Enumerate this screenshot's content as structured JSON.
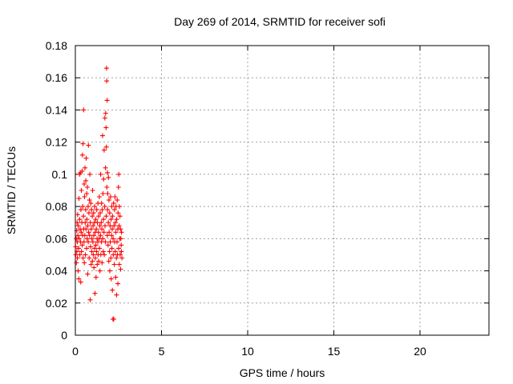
{
  "chart_data": {
    "type": "scatter",
    "title": "Day 269 of 2014, SRMTID for receiver sofi",
    "xlabel": "GPS time / hours",
    "ylabel": "SRMTID / TECUs",
    "xlim": [
      0,
      24
    ],
    "ylim": [
      0,
      0.18
    ],
    "xticks": [
      0,
      5,
      10,
      15,
      20
    ],
    "xtick_labels": [
      "0",
      "5",
      "10",
      "15",
      "20"
    ],
    "yticks": [
      0,
      0.02,
      0.04,
      0.06,
      0.08,
      0.1,
      0.12,
      0.14,
      0.16,
      0.18
    ],
    "ytick_labels": [
      "0",
      "0.02",
      "0.04",
      "0.06",
      "0.08",
      "0.1",
      "0.12",
      "0.14",
      "0.16",
      "0.18"
    ],
    "grid": true,
    "marker": "+",
    "color": "#ff0000",
    "series": [
      {
        "points": [
          [
            0.02,
            0.055
          ],
          [
            0.03,
            0.05
          ],
          [
            0.05,
            0.06
          ],
          [
            0.06,
            0.045
          ],
          [
            0.08,
            0.065
          ],
          [
            0.09,
            0.052
          ],
          [
            0.1,
            0.07
          ],
          [
            0.11,
            0.058
          ],
          [
            0.12,
            0.048
          ],
          [
            0.13,
            0.075
          ],
          [
            0.15,
            0.062
          ],
          [
            0.16,
            0.04
          ],
          [
            0.17,
            0.068
          ],
          [
            0.19,
            0.054
          ],
          [
            0.2,
            0.035
          ],
          [
            0.21,
            0.085
          ],
          [
            0.22,
            0.06
          ],
          [
            0.24,
            0.1
          ],
          [
            0.25,
            0.072
          ],
          [
            0.26,
            0.05
          ],
          [
            0.28,
            0.066
          ],
          [
            0.29,
            0.101
          ],
          [
            0.3,
            0.058
          ],
          [
            0.31,
            0.033
          ],
          [
            0.32,
            0.078
          ],
          [
            0.34,
            0.064
          ],
          [
            0.35,
            0.09
          ],
          [
            0.36,
            0.052
          ],
          [
            0.38,
            0.07
          ],
          [
            0.39,
            0.102
          ],
          [
            0.4,
            0.056
          ],
          [
            0.41,
            0.112
          ],
          [
            0.42,
            0.062
          ],
          [
            0.43,
            0.08
          ],
          [
            0.44,
            0.119
          ],
          [
            0.45,
            0.048
          ],
          [
            0.47,
            0.074
          ],
          [
            0.48,
            0.14
          ],
          [
            0.49,
            0.066
          ],
          [
            0.5,
            0.058
          ],
          [
            0.51,
            0.094
          ],
          [
            0.52,
            0.045
          ],
          [
            0.53,
            0.086
          ],
          [
            0.55,
            0.062
          ],
          [
            0.56,
            0.104
          ],
          [
            0.57,
            0.07
          ],
          [
            0.58,
            0.05
          ],
          [
            0.6,
            0.078
          ],
          [
            0.61,
            0.096
          ],
          [
            0.62,
            0.066
          ],
          [
            0.63,
            0.11
          ],
          [
            0.65,
            0.054
          ],
          [
            0.66,
            0.088
          ],
          [
            0.67,
            0.072
          ],
          [
            0.68,
            0.06
          ],
          [
            0.7,
            0.092
          ],
          [
            0.71,
            0.038
          ],
          [
            0.72,
            0.068
          ],
          [
            0.74,
            0.08
          ],
          [
            0.75,
            0.058
          ],
          [
            0.76,
            0.118
          ],
          [
            0.77,
            0.064
          ],
          [
            0.79,
            0.076
          ],
          [
            0.8,
            0.048
          ],
          [
            0.82,
            0.084
          ],
          [
            0.83,
            0.062
          ],
          [
            0.84,
            0.1
          ],
          [
            0.86,
            0.022
          ],
          [
            0.87,
            0.07
          ],
          [
            0.88,
            0.055
          ],
          [
            0.9,
            0.082
          ],
          [
            0.91,
            0.044
          ],
          [
            0.92,
            0.066
          ],
          [
            0.94,
            0.078
          ],
          [
            0.95,
            0.052
          ],
          [
            0.96,
            0.06
          ],
          [
            0.98,
            0.074
          ],
          [
            0.99,
            0.046
          ],
          [
            1.0,
            0.09
          ],
          [
            1.02,
            0.058
          ],
          [
            1.03,
            0.068
          ],
          [
            1.04,
            0.05
          ],
          [
            1.06,
            0.076
          ],
          [
            1.07,
            0.062
          ],
          [
            1.08,
            0.042
          ],
          [
            1.1,
            0.07
          ],
          [
            1.11,
            0.054
          ],
          [
            1.12,
            0.08
          ],
          [
            1.14,
            0.026
          ],
          [
            1.15,
            0.064
          ],
          [
            1.16,
            0.048
          ],
          [
            1.18,
            0.072
          ],
          [
            1.19,
            0.056
          ],
          [
            1.2,
            0.036
          ],
          [
            1.22,
            0.066
          ],
          [
            1.23,
            0.052
          ],
          [
            1.24,
            0.078
          ],
          [
            1.26,
            0.06
          ],
          [
            1.27,
            0.044
          ],
          [
            1.28,
            0.07
          ],
          [
            1.3,
            0.058
          ],
          [
            1.31,
            0.082
          ],
          [
            1.32,
            0.05
          ],
          [
            1.34,
            0.064
          ],
          [
            1.35,
            0.074
          ],
          [
            1.36,
            0.046
          ],
          [
            1.38,
            0.06
          ],
          [
            1.39,
            0.086
          ],
          [
            1.4,
            0.054
          ],
          [
            1.42,
            0.068
          ],
          [
            1.43,
            0.04
          ],
          [
            1.44,
            0.076
          ],
          [
            1.46,
            0.062
          ],
          [
            1.47,
            0.1
          ],
          [
            1.48,
            0.05
          ],
          [
            1.5,
            0.07
          ],
          [
            1.51,
            0.058
          ],
          [
            1.52,
            0.082
          ],
          [
            1.54,
            0.066
          ],
          [
            1.55,
            0.045
          ],
          [
            1.56,
            0.078
          ],
          [
            1.58,
            0.124
          ],
          [
            1.59,
            0.06
          ],
          [
            1.6,
            0.088
          ],
          [
            1.62,
            0.052
          ],
          [
            1.63,
            0.072
          ],
          [
            1.64,
            0.097
          ],
          [
            1.66,
            0.064
          ],
          [
            1.67,
            0.115
          ],
          [
            1.68,
            0.05
          ],
          [
            1.7,
            0.08
          ],
          [
            1.71,
            0.135
          ],
          [
            1.72,
            0.068
          ],
          [
            1.74,
            0.058
          ],
          [
            1.75,
            0.104
          ],
          [
            1.76,
            0.138
          ],
          [
            1.78,
            0.129
          ],
          [
            1.79,
            0.074
          ],
          [
            1.8,
            0.117
          ],
          [
            1.81,
            0.166
          ],
          [
            1.82,
            0.158
          ],
          [
            1.83,
            0.092
          ],
          [
            1.84,
            0.146
          ],
          [
            1.85,
            0.062
          ],
          [
            1.86,
            0.101
          ],
          [
            1.87,
            0.078
          ],
          [
            1.88,
            0.088
          ],
          [
            1.9,
            0.056
          ],
          [
            1.91,
            0.07
          ],
          [
            1.92,
            0.098
          ],
          [
            1.94,
            0.046
          ],
          [
            1.95,
            0.084
          ],
          [
            1.96,
            0.064
          ],
          [
            1.98,
            0.052
          ],
          [
            1.99,
            0.076
          ],
          [
            2.0,
            0.04
          ],
          [
            2.02,
            0.068
          ],
          [
            2.03,
            0.058
          ],
          [
            2.04,
            0.086
          ],
          [
            2.06,
            0.048
          ],
          [
            2.07,
            0.072
          ],
          [
            2.08,
            0.035
          ],
          [
            2.1,
            0.062
          ],
          [
            2.11,
            0.08
          ],
          [
            2.12,
            0.054
          ],
          [
            2.14,
            0.066
          ],
          [
            2.15,
            0.028
          ],
          [
            2.16,
            0.074
          ],
          [
            2.18,
            0.01
          ],
          [
            2.19,
            0.06
          ],
          [
            2.2,
            0.05
          ],
          [
            2.22,
            0.082
          ],
          [
            2.23,
            0.01
          ],
          [
            2.24,
            0.068
          ],
          [
            2.26,
            0.044
          ],
          [
            2.27,
            0.078
          ],
          [
            2.28,
            0.058
          ],
          [
            2.3,
            0.086
          ],
          [
            2.31,
            0.052
          ],
          [
            2.32,
            0.07
          ],
          [
            2.34,
            0.036
          ],
          [
            2.35,
            0.064
          ],
          [
            2.36,
            0.08
          ],
          [
            2.38,
            0.048
          ],
          [
            2.39,
            0.025
          ],
          [
            2.4,
            0.072
          ],
          [
            2.42,
            0.058
          ],
          [
            2.43,
            0.084
          ],
          [
            2.44,
            0.05
          ],
          [
            2.46,
            0.066
          ],
          [
            2.47,
            0.032
          ],
          [
            2.48,
            0.076
          ],
          [
            2.5,
            0.092
          ],
          [
            2.51,
            0.054
          ],
          [
            2.52,
            0.1
          ],
          [
            2.54,
            0.068
          ],
          [
            2.55,
            0.044
          ],
          [
            2.56,
            0.08
          ],
          [
            2.58,
            0.06
          ],
          [
            2.59,
            0.074
          ],
          [
            2.6,
            0.05
          ],
          [
            2.62,
            0.066
          ],
          [
            2.63,
            0.041
          ],
          [
            2.64,
            0.06
          ],
          [
            2.66,
            0.056
          ],
          [
            2.67,
            0.052
          ],
          [
            2.68,
            0.064
          ],
          [
            2.7,
            0.048
          ]
        ]
      }
    ]
  }
}
